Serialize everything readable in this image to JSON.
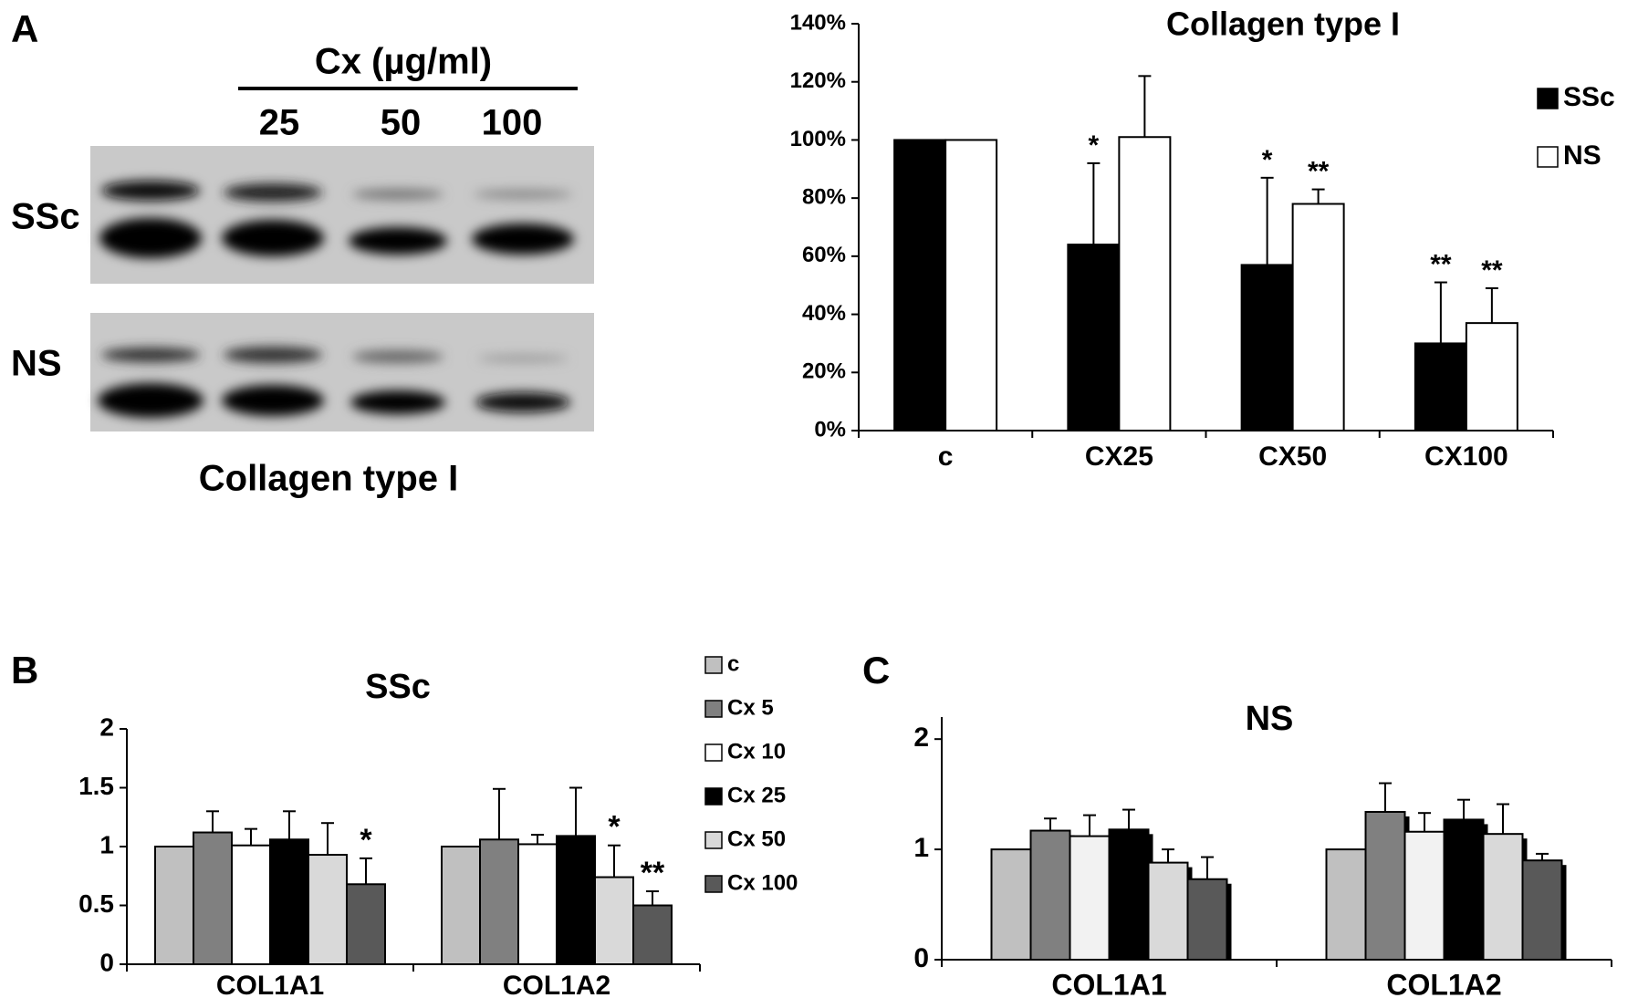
{
  "panels": {
    "a": "A",
    "b": "B",
    "c": "C"
  },
  "blot": {
    "header": "Cx (µg/ml)",
    "doses": [
      "25",
      "50",
      "100"
    ],
    "rows": [
      "SSc",
      "NS"
    ],
    "caption": "Collagen type I"
  },
  "chart_data": [
    {
      "type": "bar",
      "title": "Collagen type I",
      "categories": [
        "c",
        "CX25",
        "CX50",
        "CX100"
      ],
      "series": [
        {
          "name": "SSc",
          "color": "#000000",
          "values": [
            100,
            64,
            57,
            30
          ],
          "errors": [
            null,
            28,
            30,
            21
          ],
          "annotations": [
            null,
            "*",
            "*",
            "**"
          ]
        },
        {
          "name": "NS",
          "color": "#ffffff",
          "values": [
            100,
            101,
            78,
            37
          ],
          "errors": [
            null,
            21,
            5,
            12
          ],
          "annotations": [
            null,
            null,
            "**",
            "**"
          ]
        }
      ],
      "ylim": [
        0,
        140
      ],
      "yticks": [
        {
          "value": 0,
          "label": "0%"
        },
        {
          "value": 20,
          "label": "20%"
        },
        {
          "value": 40,
          "label": "40%"
        },
        {
          "value": 60,
          "label": "60%"
        },
        {
          "value": 80,
          "label": "80%"
        },
        {
          "value": 100,
          "label": "100%"
        },
        {
          "value": 120,
          "label": "120%"
        },
        {
          "value": 140,
          "label": "140%"
        }
      ],
      "legend": "top-right",
      "shadow": false
    },
    {
      "type": "bar",
      "title": "SSc",
      "categories": [
        "COL1A1",
        "COL1A2"
      ],
      "series": [
        {
          "name": "c",
          "color": "#c0c0c0",
          "values": [
            1,
            1
          ],
          "errors": [
            null,
            null
          ],
          "annotations": [
            null,
            null
          ]
        },
        {
          "name": "Cx 5",
          "color": "#808080",
          "values": [
            1.12,
            1.06
          ],
          "errors": [
            0.18,
            0.43
          ],
          "annotations": [
            null,
            null
          ]
        },
        {
          "name": "Cx 10",
          "color": "#ffffff",
          "values": [
            1.01,
            1.02
          ],
          "errors": [
            0.14,
            0.08
          ],
          "annotations": [
            null,
            null
          ]
        },
        {
          "name": "Cx 25",
          "color": "#000000",
          "values": [
            1.06,
            1.09
          ],
          "errors": [
            0.24,
            0.41
          ],
          "annotations": [
            null,
            null
          ]
        },
        {
          "name": "Cx 50",
          "color": "#d9d9d9",
          "values": [
            0.93,
            0.74
          ],
          "errors": [
            0.27,
            0.27
          ],
          "annotations": [
            null,
            "*"
          ]
        },
        {
          "name": "Cx 100",
          "color": "#595959",
          "values": [
            0.68,
            0.5
          ],
          "errors": [
            0.22,
            0.12
          ],
          "annotations": [
            "*",
            "**"
          ]
        }
      ],
      "ylim": [
        0,
        2
      ],
      "yticks": [
        0,
        0.5,
        1,
        1.5,
        2
      ],
      "legend": "right",
      "shadow": false
    },
    {
      "type": "bar",
      "title": "NS",
      "categories": [
        "COL1A1",
        "COL1A2"
      ],
      "series": [
        {
          "name": "c",
          "color": "#c0c0c0",
          "values": [
            1,
            1
          ],
          "errors": [
            null,
            null
          ]
        },
        {
          "name": "Cx 5",
          "color": "#808080",
          "values": [
            1.17,
            1.34
          ],
          "errors": [
            0.11,
            0.26
          ]
        },
        {
          "name": "Cx 10",
          "color": "#f2f2f2",
          "values": [
            1.12,
            1.16
          ],
          "errors": [
            0.19,
            0.17
          ]
        },
        {
          "name": "Cx 25",
          "color": "#000000",
          "values": [
            1.18,
            1.27
          ],
          "errors": [
            0.18,
            0.18
          ]
        },
        {
          "name": "Cx 50",
          "color": "#d9d9d9",
          "values": [
            0.88,
            1.14
          ],
          "errors": [
            0.12,
            0.27
          ]
        },
        {
          "name": "Cx 100",
          "color": "#595959",
          "values": [
            0.73,
            0.9
          ],
          "errors": [
            0.2,
            0.06
          ]
        }
      ],
      "ylim": [
        0,
        2.2
      ],
      "yticks": [
        0,
        1,
        2
      ],
      "legend": "none",
      "shadow": true
    }
  ]
}
